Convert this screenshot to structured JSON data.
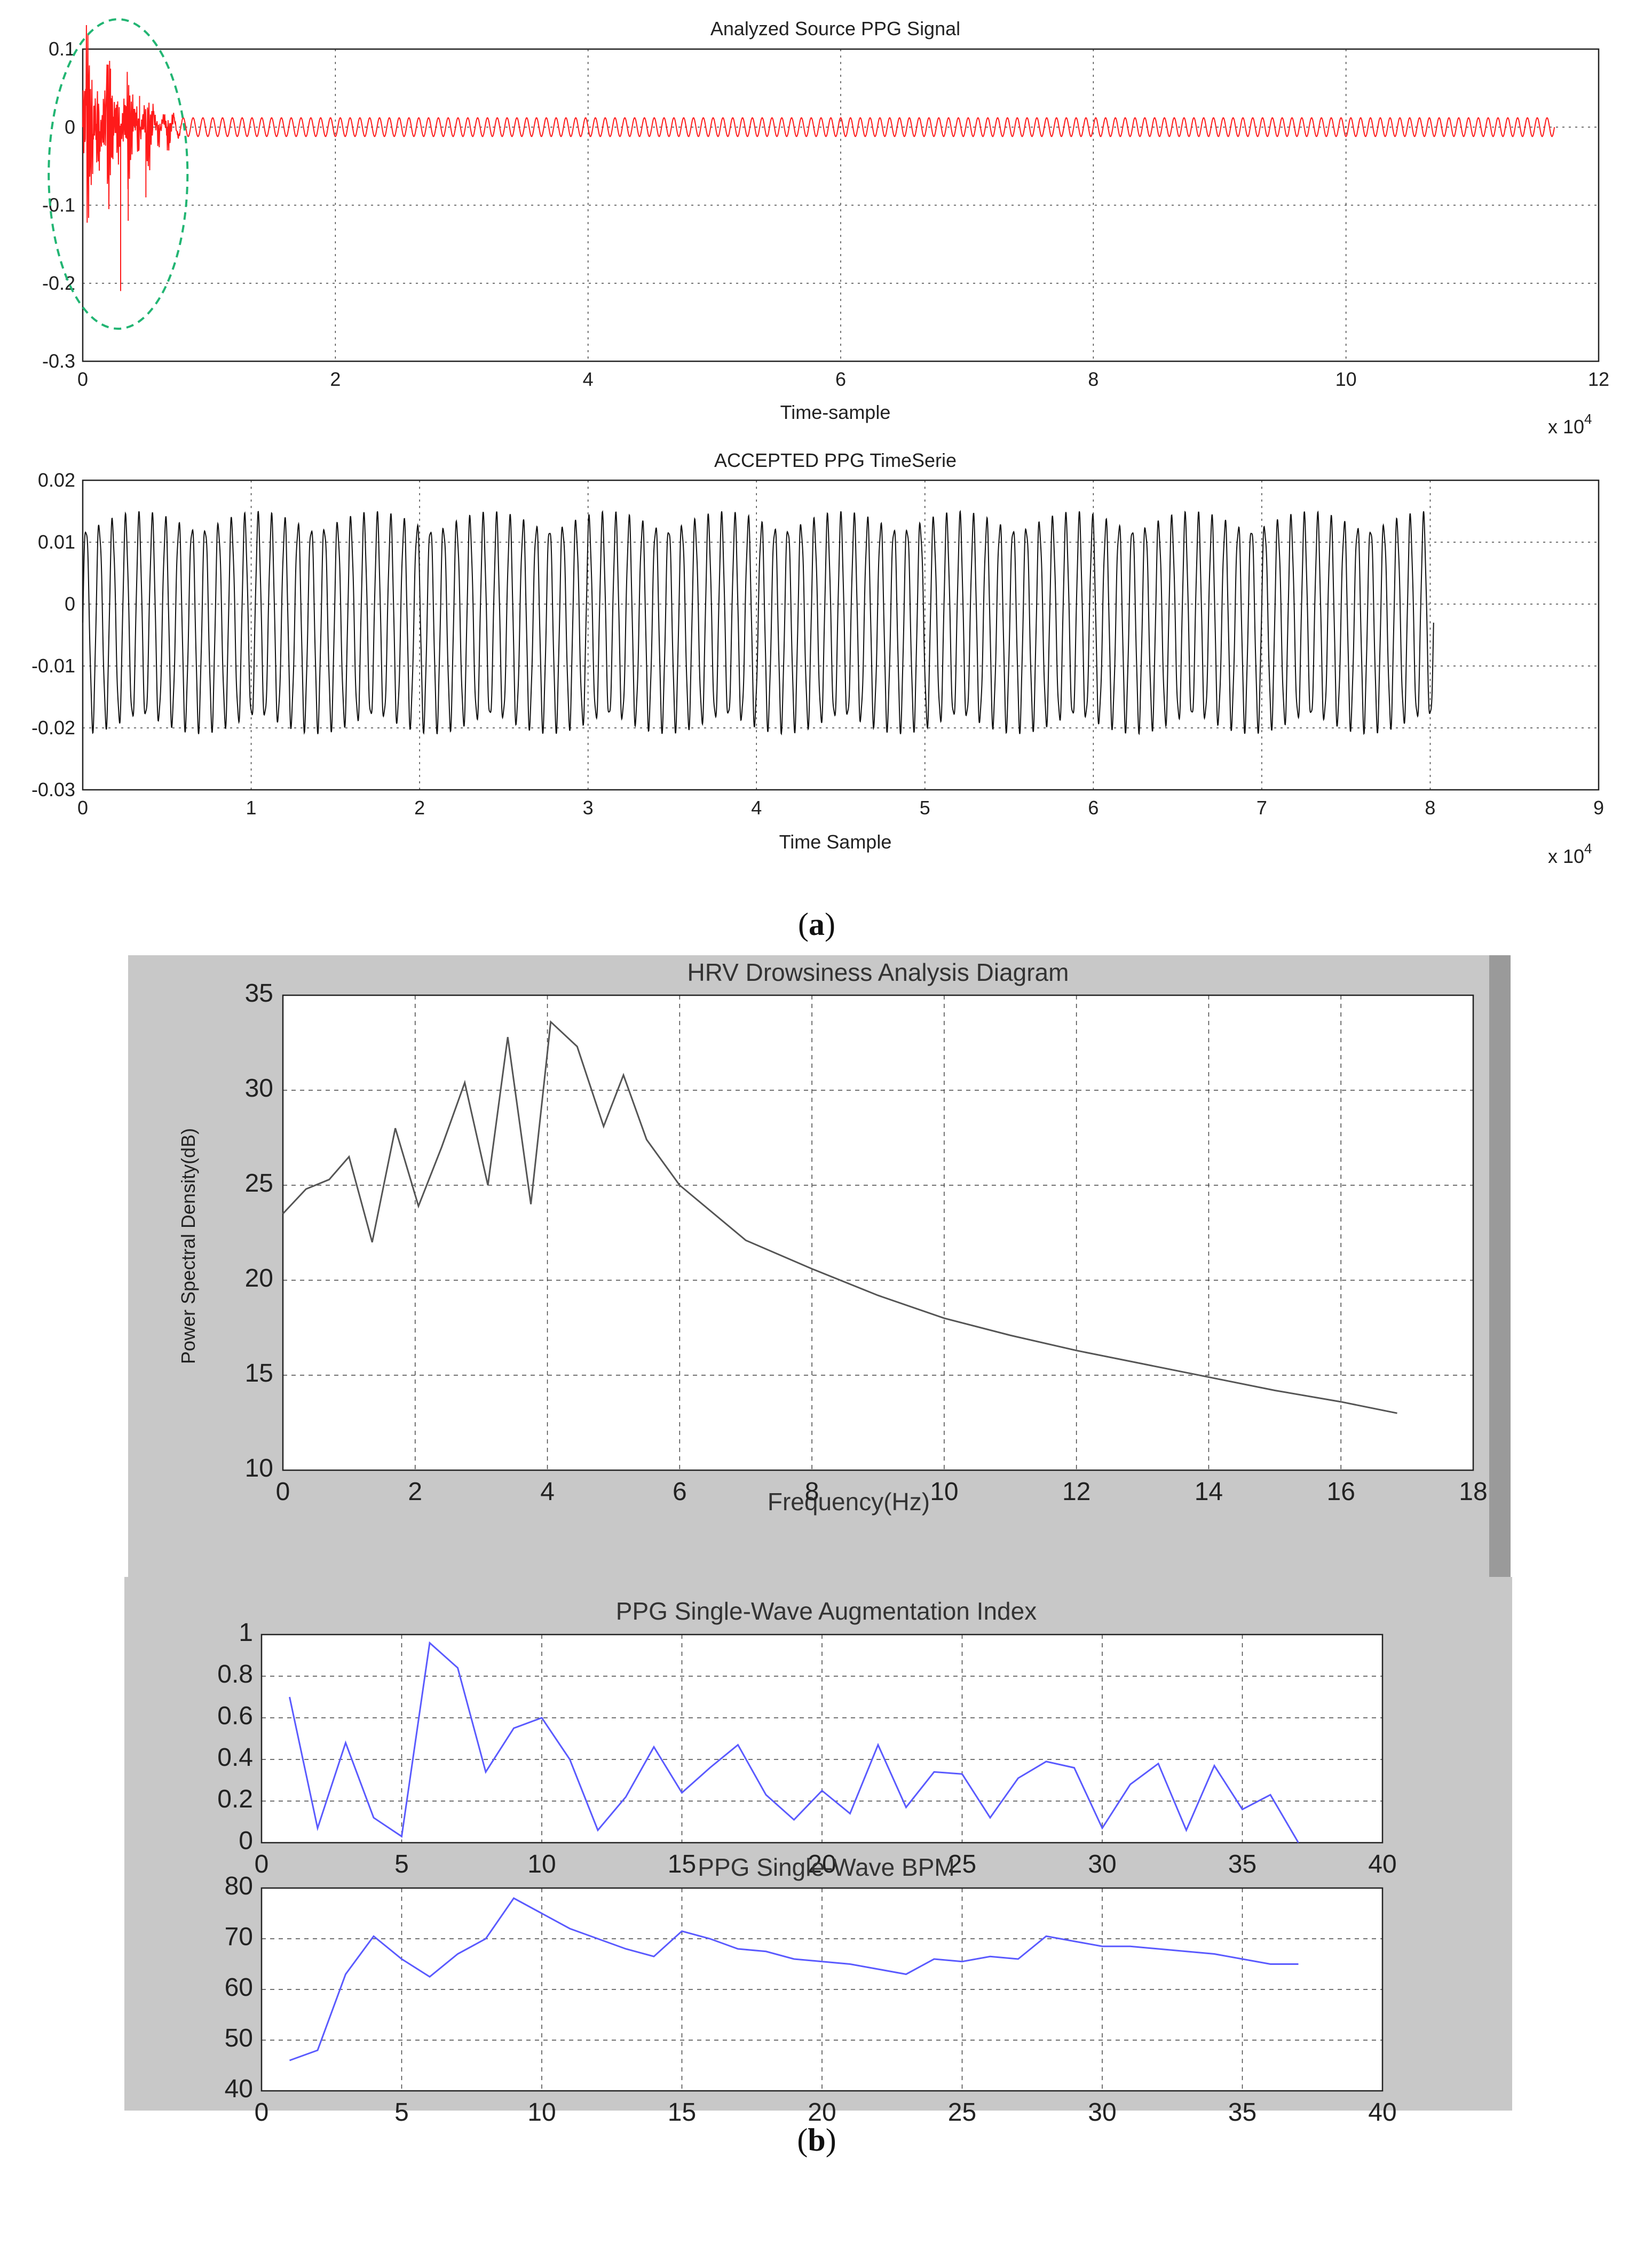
{
  "figure": {
    "caption_a_letter": "a",
    "caption_b_letter": "b",
    "colors": {
      "source_signal": "#ff1a1a",
      "accepted_signal": "#111111",
      "psd_line": "#555555",
      "blue_line": "#5a5aff",
      "ellipse": "#22b573",
      "panel_bg": "#c8c8c8"
    }
  },
  "chart_data": [
    {
      "id": "source",
      "type": "line",
      "title": "Analyzed Source PPG Signal",
      "xlabel": "Time-sample",
      "ylabel": "",
      "x_multiplier_label": "x 10",
      "x_multiplier_exp": "4",
      "xlim": [
        0,
        12
      ],
      "ylim": [
        -0.3,
        0.1
      ],
      "xticks": [
        "0",
        "2",
        "4",
        "6",
        "8",
        "10",
        "12"
      ],
      "yticks": [
        "0.1",
        "0",
        "-0.1",
        "-0.2",
        "-0.3"
      ],
      "grid": true,
      "series": [
        {
          "description": "oscillating PPG signal about 0 with large artifact burst near start",
          "x_end": 11.65,
          "cycles": 150,
          "amplitude": 0.012,
          "artifact_region": [
            0,
            0.8
          ],
          "artifact_peaks": [
            0.075,
            -0.22,
            -0.12,
            0.05,
            -0.1,
            0.04
          ]
        }
      ],
      "annotation": "green dashed ellipse around artifact at start"
    },
    {
      "id": "accepted",
      "type": "line",
      "title": "ACCEPTED PPG TimeSerie",
      "xlabel": "Time Sample",
      "ylabel": "",
      "x_multiplier_label": "x 10",
      "x_multiplier_exp": "4",
      "xlim": [
        0,
        9
      ],
      "ylim": [
        -0.03,
        0.02
      ],
      "xticks": [
        "0",
        "1",
        "2",
        "3",
        "4",
        "5",
        "6",
        "7",
        "8",
        "9"
      ],
      "yticks": [
        "0.02",
        "0.01",
        "0",
        "-0.01",
        "-0.02",
        "-0.03"
      ],
      "grid": true,
      "series": [
        {
          "description": "regular oscillation between about -0.02 and 0.015",
          "x_end": 8.02,
          "cycles": 102,
          "max": 0.015,
          "min": -0.021
        }
      ]
    },
    {
      "id": "psd",
      "type": "line",
      "title": "HRV Drowsiness Analysis Diagram",
      "xlabel": "Frequency(Hz)",
      "ylabel": "Power Spectral Density(dB)",
      "xlim": [
        0,
        18
      ],
      "ylim": [
        10,
        35
      ],
      "xticks": [
        "0",
        "2",
        "4",
        "6",
        "8",
        "10",
        "12",
        "14",
        "16",
        "18"
      ],
      "yticks": [
        "35",
        "30",
        "25",
        "20",
        "15",
        "10"
      ],
      "grid": true,
      "series": [
        {
          "x": [
            0,
            0.35,
            0.7,
            1.0,
            1.35,
            1.7,
            2.05,
            2.4,
            2.75,
            3.1,
            3.4,
            3.75,
            4.05,
            4.45,
            4.85,
            5.15,
            5.5,
            6.0,
            7.0,
            8.0,
            9.0,
            10.0,
            11.0,
            12.0,
            13.0,
            14.0,
            15.0,
            16.0,
            16.85
          ],
          "y": [
            23.5,
            24.8,
            25.3,
            26.5,
            22.0,
            28.0,
            23.9,
            27.0,
            30.4,
            25.0,
            32.8,
            24.0,
            33.6,
            32.3,
            28.1,
            30.8,
            27.4,
            25.0,
            22.1,
            20.6,
            19.2,
            18.0,
            17.1,
            16.3,
            15.6,
            14.9,
            14.2,
            13.6,
            13.0
          ]
        }
      ]
    },
    {
      "id": "aix",
      "type": "line",
      "title": "PPG Single-Wave Augmentation Index",
      "xlabel": "",
      "ylabel": "",
      "xlim": [
        0,
        40
      ],
      "ylim": [
        0,
        1
      ],
      "xticks": [
        "0",
        "5",
        "10",
        "15",
        "20",
        "25",
        "30",
        "35",
        "40"
      ],
      "yticks": [
        "1",
        "0.8",
        "0.6",
        "0.4",
        "0.2",
        "0"
      ],
      "grid": true,
      "series": [
        {
          "x": [
            1,
            2,
            3,
            4,
            5,
            6,
            7,
            8,
            9,
            10,
            11,
            12,
            13,
            14,
            15,
            16,
            17,
            18,
            19,
            20,
            21,
            22,
            23,
            24,
            25,
            26,
            27,
            28,
            29,
            30,
            31,
            32,
            33,
            34,
            35,
            36,
            37
          ],
          "y": [
            0.7,
            0.07,
            0.48,
            0.12,
            0.03,
            0.96,
            0.84,
            0.34,
            0.55,
            0.6,
            0.4,
            0.06,
            0.22,
            0.46,
            0.24,
            0.36,
            0.47,
            0.23,
            0.11,
            0.25,
            0.14,
            0.47,
            0.17,
            0.34,
            0.33,
            0.12,
            0.31,
            0.39,
            0.36,
            0.07,
            0.28,
            0.38,
            0.06,
            0.37,
            0.16,
            0.23,
            0.0
          ]
        }
      ]
    },
    {
      "id": "bpm",
      "type": "line",
      "title": "PPG Single-Wave BPM",
      "xlabel": "",
      "ylabel": "",
      "xlim": [
        0,
        40
      ],
      "ylim": [
        40,
        80
      ],
      "xticks": [
        "0",
        "5",
        "10",
        "15",
        "20",
        "25",
        "30",
        "35",
        "40"
      ],
      "yticks": [
        "80",
        "70",
        "60",
        "50",
        "40"
      ],
      "grid": true,
      "series": [
        {
          "x": [
            1,
            2,
            3,
            4,
            5,
            6,
            7,
            8,
            9,
            10,
            11,
            12,
            13,
            14,
            15,
            16,
            17,
            18,
            19,
            20,
            21,
            22,
            23,
            24,
            25,
            26,
            27,
            28,
            29,
            30,
            31,
            32,
            33,
            34,
            35,
            36,
            37
          ],
          "y": [
            46,
            48,
            63,
            70.5,
            66,
            62.5,
            67,
            70,
            78,
            75,
            72,
            70,
            68,
            66.5,
            71.5,
            70,
            68,
            67.5,
            66,
            65.5,
            65,
            64,
            63,
            66,
            65.5,
            66.5,
            66,
            70.5,
            69.5,
            68.5,
            68.5,
            68,
            67.5,
            67,
            66,
            65,
            65
          ]
        }
      ]
    }
  ]
}
